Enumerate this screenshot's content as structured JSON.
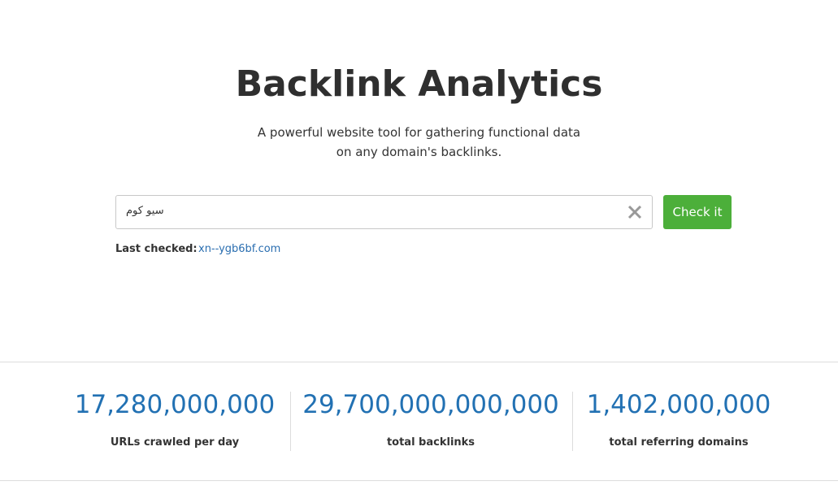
{
  "header": {
    "title": "Backlink Analytics",
    "subtitle_lines": [
      "A powerful website tool for gathering functional data",
      "on any domain's backlinks."
    ]
  },
  "search": {
    "input_value": "سيو كوم",
    "button": "Check it",
    "last_checked_label": "Last checked:",
    "last_checked_link": "xn--ygb6bf.com"
  },
  "stats": [
    {
      "value": "17,280,000,000",
      "label": "URLs crawled per day"
    },
    {
      "value": "29,700,000,000,000",
      "label": "total backlinks"
    },
    {
      "value": "1,402,000,000",
      "label": "total referring domains"
    }
  ]
}
